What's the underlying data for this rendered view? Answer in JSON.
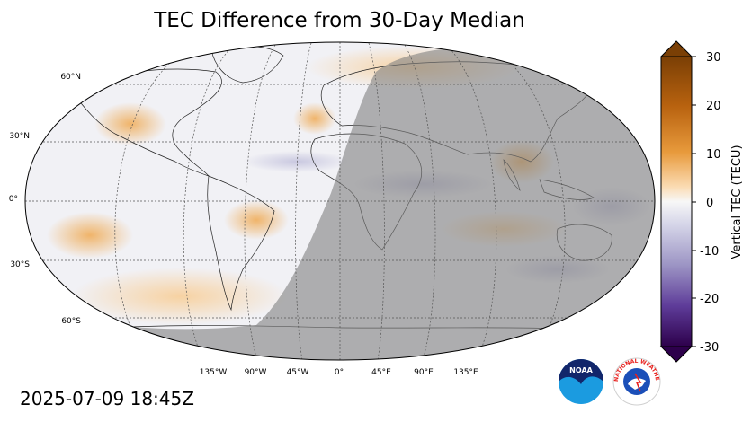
{
  "title": "TEC Difference from 30-Day Median",
  "timestamp": "2025-07-09 18:45Z",
  "lat_labels": [
    "60°N",
    "30°N",
    "0°",
    "30°S",
    "60°S"
  ],
  "lon_labels": [
    "135°W",
    "90°W",
    "45°W",
    "0°",
    "45°E",
    "90°E",
    "135°E"
  ],
  "colorbar": {
    "label": "Vertical TEC (TECU)",
    "ticks": [
      "30",
      "20",
      "10",
      "0",
      "-10",
      "-20",
      "-30"
    ],
    "range": [
      -30,
      30
    ],
    "colors": {
      "max": "#7a3f05",
      "high": "#e0861a",
      "mid": "#f7f7f7",
      "low": "#8a82b9",
      "min": "#2d004b"
    }
  },
  "logos": {
    "noaa": "NOAA",
    "nws": "NATIONAL WEATHER SERVICE"
  }
}
